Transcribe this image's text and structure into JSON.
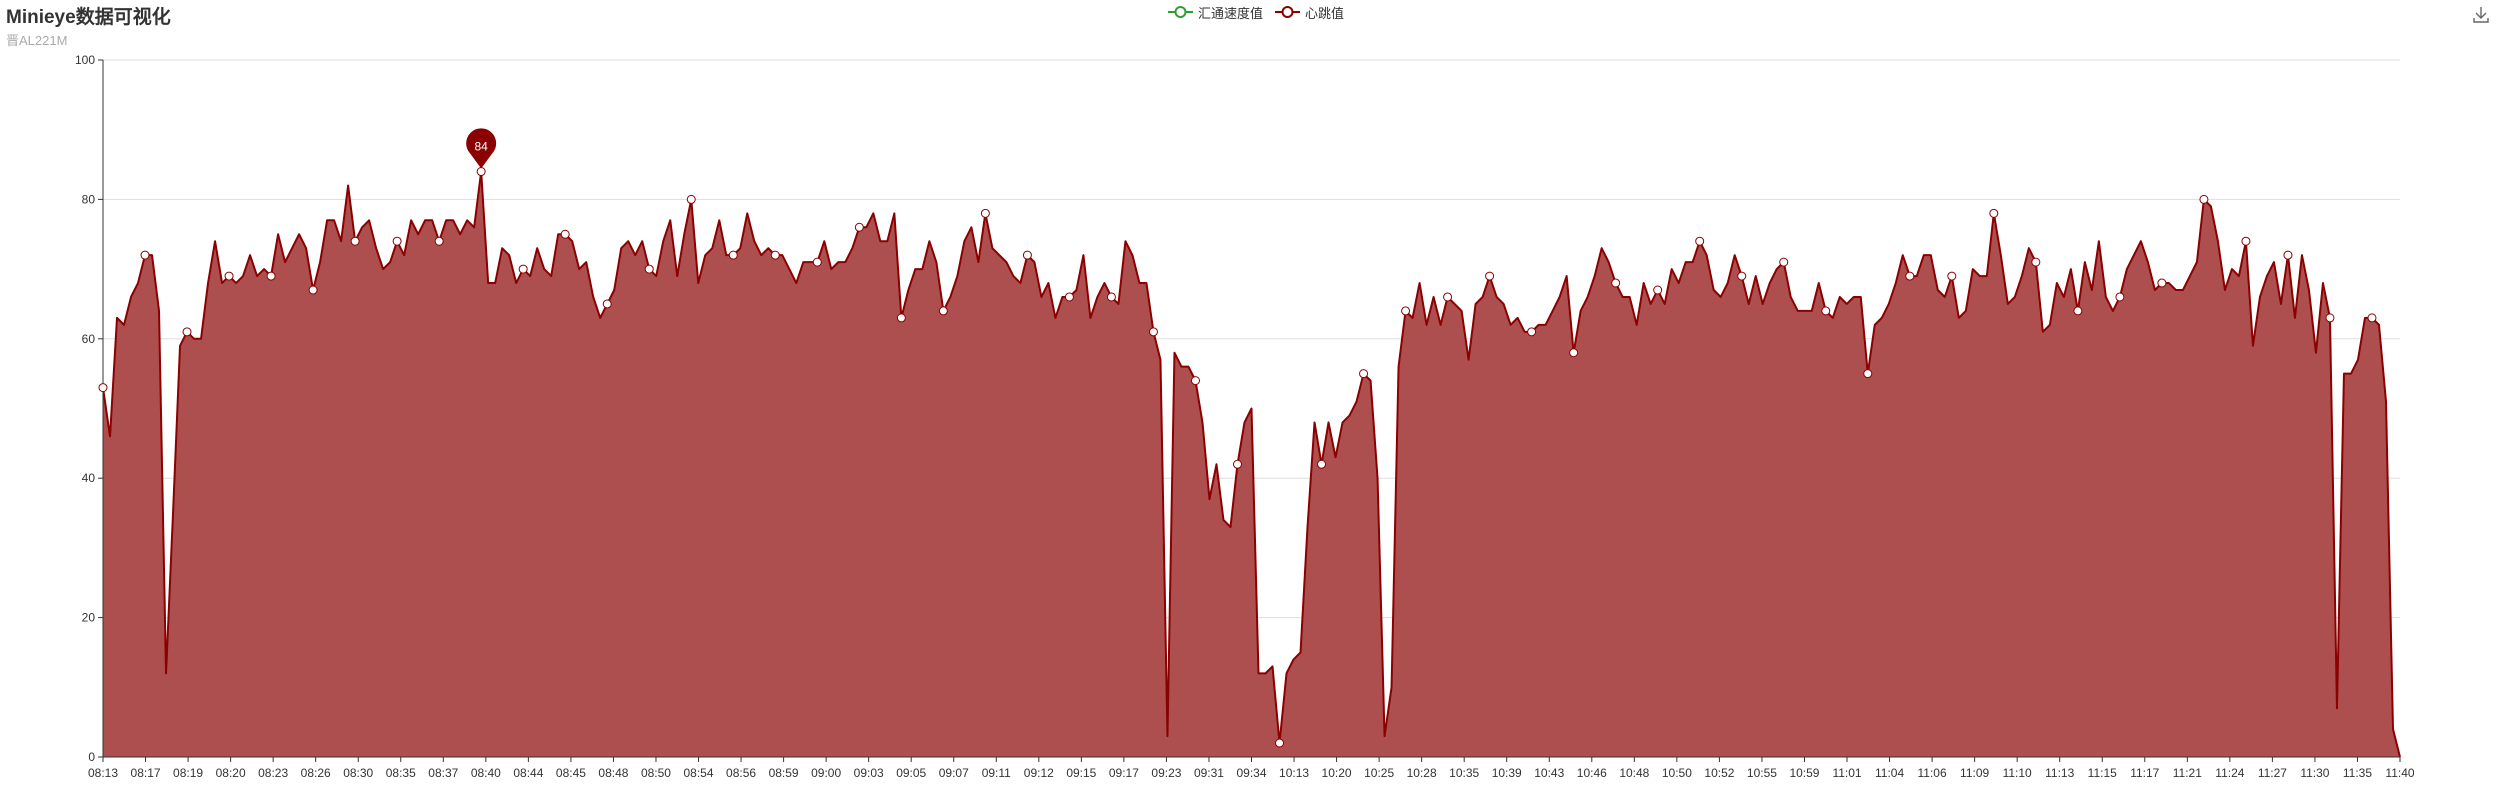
{
  "title": "Minieye数据可视化",
  "subtitle": "晋AL221M",
  "legend": [
    {
      "name": "汇通速度值",
      "color": "#2ca02c"
    },
    {
      "name": "心跳值",
      "color": "#8b0000"
    }
  ],
  "toolbox": {
    "save_icon": "download-icon"
  },
  "colors": {
    "line": "#8b0000",
    "area": "#ae4f4f",
    "grid": "#dddddd",
    "axis": "#333333",
    "pin": "#8b0000"
  },
  "chart_data": {
    "type": "area",
    "title": "Minieye数据可视化",
    "subtitle": "晋AL221M",
    "ylim": [
      0,
      100
    ],
    "y_ticks": [
      0,
      20,
      40,
      60,
      80,
      100
    ],
    "grid": true,
    "legend_position": "top-center",
    "x_tick_labels": [
      "08:13",
      "08:17",
      "08:19",
      "08:20",
      "08:23",
      "08:26",
      "08:30",
      "08:35",
      "08:37",
      "08:40",
      "08:44",
      "08:45",
      "08:48",
      "08:50",
      "08:54",
      "08:56",
      "08:59",
      "09:00",
      "09:03",
      "09:05",
      "09:07",
      "09:11",
      "09:12",
      "09:15",
      "09:17",
      "09:23",
      "09:31",
      "09:34",
      "10:13",
      "10:20",
      "10:25",
      "10:28",
      "10:35",
      "10:39",
      "10:43",
      "10:46",
      "10:48",
      "10:50",
      "10:52",
      "10:55",
      "10:59",
      "11:01",
      "11:04",
      "11:06",
      "11:09",
      "11:10",
      "11:13",
      "11:15",
      "11:17",
      "11:21",
      "11:24",
      "11:27",
      "11:30",
      "11:35",
      "11:40"
    ],
    "series": [
      {
        "name": "心跳值",
        "values": [
          53,
          46,
          63,
          62,
          66,
          68,
          72,
          72,
          64,
          12,
          35,
          59,
          61,
          60,
          60,
          68,
          74,
          68,
          69,
          68,
          69,
          72,
          69,
          70,
          69,
          75,
          71,
          73,
          75,
          73,
          67,
          71,
          77,
          77,
          74,
          82,
          74,
          76,
          77,
          73,
          70,
          71,
          74,
          72,
          77,
          75,
          77,
          77,
          74,
          77,
          77,
          75,
          77,
          76,
          84,
          68,
          68,
          73,
          72,
          68,
          70,
          69,
          73,
          70,
          69,
          75,
          75,
          74,
          70,
          71,
          66,
          63,
          65,
          67,
          73,
          74,
          72,
          74,
          70,
          69,
          74,
          77,
          69,
          75,
          80,
          68,
          72,
          73,
          77,
          72,
          72,
          73,
          78,
          74,
          72,
          73,
          72,
          72,
          70,
          68,
          71,
          71,
          71,
          74,
          70,
          71,
          71,
          73,
          76,
          76,
          78,
          74,
          74,
          78,
          63,
          67,
          70,
          70,
          74,
          71,
          64,
          66,
          69,
          74,
          76,
          71,
          78,
          73,
          72,
          71,
          69,
          68,
          72,
          71,
          66,
          68,
          63,
          66,
          66,
          67,
          72,
          63,
          66,
          68,
          66,
          65,
          74,
          72,
          68,
          68,
          61,
          57,
          3,
          58,
          56,
          56,
          54,
          48,
          37,
          42,
          34,
          33,
          42,
          48,
          50,
          12,
          12,
          13,
          2,
          12,
          14,
          15,
          33,
          48,
          42,
          48,
          43,
          48,
          49,
          51,
          55,
          54,
          40,
          3,
          10,
          56,
          64,
          63,
          68,
          62,
          66,
          62,
          66,
          65,
          64,
          57,
          65,
          66,
          69,
          66,
          65,
          62,
          63,
          61,
          61,
          62,
          62,
          64,
          66,
          69,
          58,
          64,
          66,
          69,
          73,
          71,
          68,
          66,
          66,
          62,
          68,
          65,
          67,
          65,
          70,
          68,
          71,
          71,
          74,
          72,
          67,
          66,
          68,
          72,
          69,
          65,
          69,
          65,
          68,
          70,
          71,
          66,
          64,
          64,
          64,
          68,
          64,
          63,
          66,
          65,
          66,
          66,
          55,
          62,
          63,
          65,
          68,
          72,
          69,
          69,
          72,
          72,
          67,
          66,
          69,
          63,
          64,
          70,
          69,
          69,
          78,
          72,
          65,
          66,
          69,
          73,
          71,
          61,
          62,
          68,
          66,
          70,
          64,
          71,
          67,
          74,
          66,
          64,
          66,
          70,
          72,
          74,
          71,
          67,
          68,
          68,
          67,
          67,
          69,
          71,
          80,
          79,
          74,
          67,
          70,
          69,
          74,
          59,
          66,
          69,
          71,
          65,
          72,
          63,
          72,
          67,
          58,
          68,
          63,
          7,
          55,
          55,
          57,
          63,
          63,
          62,
          51,
          4,
          0
        ]
      }
    ]
  }
}
